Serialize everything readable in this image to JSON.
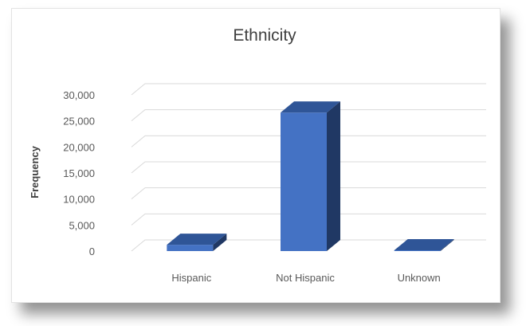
{
  "chart_data": {
    "type": "bar",
    "title": "Ethnicity",
    "xlabel": "",
    "ylabel": "Frequency",
    "categories": [
      "Hispanic",
      "Not Hispanic",
      "Unknown"
    ],
    "values": [
      1200,
      26600,
      150
    ],
    "ylim": [
      0,
      30000
    ],
    "yticks": [
      0,
      5000,
      10000,
      15000,
      20000,
      25000,
      30000
    ],
    "ytick_labels": [
      "0",
      "5,000",
      "10,000",
      "15,000",
      "20,000",
      "25,000",
      "30,000"
    ],
    "grid": true,
    "legend": "none",
    "style": "3d-column",
    "colors": {
      "bar_front": "#4472C4",
      "bar_top": "#2F5597",
      "bar_side": "#203864",
      "gridline": "#d9d9d9",
      "text": "#595959"
    }
  }
}
